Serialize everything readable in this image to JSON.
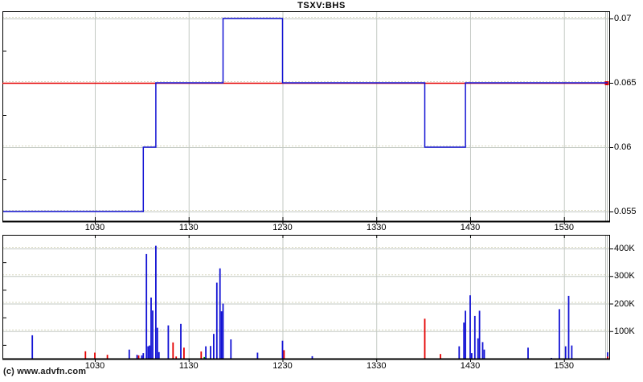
{
  "app": {
    "title": "TSXV:BHS",
    "copyright": "(c) www.advfn.com"
  },
  "colors": {
    "background": "#ffffff",
    "axis": "#000000",
    "grid": "#c3c9c3",
    "grid_dotted": "#d7d7bf",
    "price_line": "#1212d4",
    "prev_close_line": "#e40000",
    "volume_blue": "#1212d4",
    "volume_red": "#e40000",
    "volume_green": "#009900"
  },
  "chart_data": [
    {
      "type": "line",
      "subtype": "step",
      "title": "TSXV:BHS",
      "x_domain": [
        "09:31",
        "16:00"
      ],
      "xticks": [
        "1030",
        "1130",
        "1230",
        "1330",
        "1430",
        "1530"
      ],
      "yticks": [
        "0.07",
        "0.065",
        "0.06",
        "0.055"
      ],
      "minor_yticks": [
        0.0675,
        0.0625,
        0.0575
      ],
      "ylim": [
        0.05425,
        0.07056
      ],
      "grid": true,
      "legend": "none",
      "series": [
        {
          "name": "price",
          "color_key": "price_line",
          "points": [
            [
              "09:31",
              0.055
            ],
            [
              "11:01",
              0.06
            ],
            [
              "11:09",
              0.065
            ],
            [
              "11:52",
              0.07
            ],
            [
              "12:30",
              0.065
            ],
            [
              "14:01",
              0.06
            ],
            [
              "14:27",
              0.065
            ]
          ],
          "end": "16:00"
        },
        {
          "name": "prev_close",
          "color_key": "prev_close_line",
          "value": 0.065,
          "marker": "square"
        }
      ]
    },
    {
      "type": "bar",
      "name": "volume",
      "unit": "K",
      "x_domain": [
        "09:31",
        "16:00"
      ],
      "xticks": [
        "1030",
        "1130",
        "1230",
        "1330",
        "1430",
        "1530"
      ],
      "yticks": [
        "400K",
        "300K",
        "200K",
        "100K"
      ],
      "minor_yticks_k": [
        350,
        250,
        150,
        50
      ],
      "ylim_k": [
        0,
        450
      ],
      "bars": [
        [
          "09:50",
          85,
          "b"
        ],
        [
          "10:24",
          27,
          "r"
        ],
        [
          "10:30",
          22,
          "r"
        ],
        [
          "10:38",
          14,
          "r"
        ],
        [
          "10:52",
          33,
          "b"
        ],
        [
          "10:57",
          14,
          "b"
        ],
        [
          "10:58",
          12,
          "r"
        ],
        [
          "11:00",
          12,
          "b"
        ],
        [
          "11:01",
          20,
          "b"
        ],
        [
          "11:03",
          380,
          "b"
        ],
        [
          "11:04",
          45,
          "b"
        ],
        [
          "11:05",
          48,
          "b"
        ],
        [
          "11:06",
          222,
          "b"
        ],
        [
          "11:07",
          175,
          "b"
        ],
        [
          "11:09",
          410,
          "b"
        ],
        [
          "11:10",
          112,
          "b"
        ],
        [
          "11:11",
          24,
          "b"
        ],
        [
          "11:17",
          121,
          "b"
        ],
        [
          "11:20",
          59,
          "r"
        ],
        [
          "11:22",
          8,
          "r"
        ],
        [
          "11:25",
          126,
          "b"
        ],
        [
          "11:27",
          40,
          "r"
        ],
        [
          "11:38",
          26,
          "r"
        ],
        [
          "11:40",
          6,
          "g"
        ],
        [
          "11:41",
          45,
          "b"
        ],
        [
          "11:44",
          46,
          "b"
        ],
        [
          "11:46",
          90,
          "b"
        ],
        [
          "11:48",
          276,
          "b"
        ],
        [
          "11:50",
          328,
          "b"
        ],
        [
          "11:51",
          172,
          "b"
        ],
        [
          "11:52",
          200,
          "b"
        ],
        [
          "11:57",
          70,
          "b"
        ],
        [
          "12:14",
          22,
          "b"
        ],
        [
          "12:30",
          65,
          "b"
        ],
        [
          "12:31",
          31,
          "r"
        ],
        [
          "12:49",
          9,
          "b"
        ],
        [
          "14:01",
          145,
          "r"
        ],
        [
          "14:11",
          17,
          "r"
        ],
        [
          "14:23",
          45,
          "b"
        ],
        [
          "14:26",
          131,
          "b"
        ],
        [
          "14:27",
          174,
          "b"
        ],
        [
          "14:30",
          230,
          "b"
        ],
        [
          "14:31",
          20,
          "b"
        ],
        [
          "14:33",
          155,
          "b"
        ],
        [
          "14:35",
          74,
          "b"
        ],
        [
          "14:36",
          174,
          "b"
        ],
        [
          "14:38",
          60,
          "b"
        ],
        [
          "14:39",
          33,
          "b"
        ],
        [
          "15:07",
          40,
          "b"
        ],
        [
          "15:22",
          3,
          "b"
        ],
        [
          "15:27",
          180,
          "b"
        ],
        [
          "15:31",
          45,
          "b"
        ],
        [
          "15:33",
          228,
          "b"
        ],
        [
          "15:35",
          48,
          "b"
        ],
        [
          "15:59",
          23,
          "b"
        ],
        [
          "16:00",
          8,
          "r"
        ]
      ]
    }
  ]
}
